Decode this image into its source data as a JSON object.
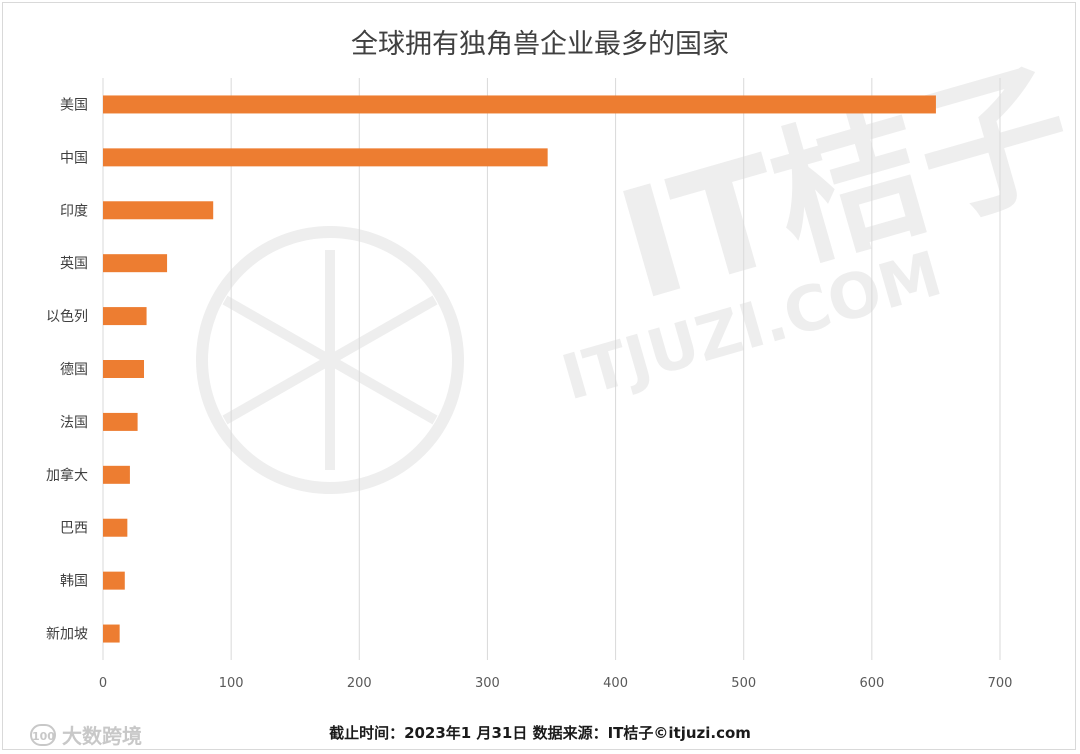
{
  "chart_data": {
    "type": "bar",
    "orientation": "horizontal",
    "title": "全球拥有独角兽企业最多的国家",
    "categories": [
      "美国",
      "中国",
      "印度",
      "英国",
      "以色列",
      "德国",
      "法国",
      "加拿大",
      "巴西",
      "韩国",
      "新加坡"
    ],
    "values": [
      650,
      347,
      86,
      50,
      34,
      32,
      27,
      21,
      19,
      17,
      13
    ],
    "xlim": [
      0,
      700
    ],
    "xticks": [
      0,
      100,
      200,
      300,
      400,
      500,
      600,
      700
    ],
    "grid": "vertical",
    "bar_color": "#ED7D31",
    "grid_color": "#d9d9d9"
  },
  "footer": {
    "source": "截止时间：2023年1 月31日 数据来源：IT桔子©itjuzi.com"
  },
  "watermark": {
    "badge": "100",
    "brand": "大数跨境"
  },
  "background_watermark": {
    "main": "IT桔子",
    "url": "ITJUZI.COM"
  }
}
